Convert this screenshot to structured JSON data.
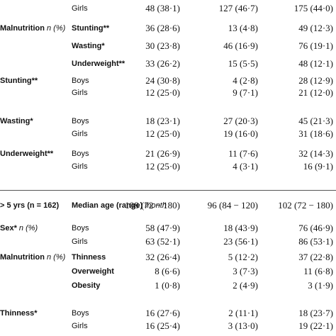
{
  "rows": [
    {
      "c1": "",
      "c1i": "",
      "c2": "Girls",
      "c2i": "",
      "c3": "48 (38·1)",
      "c4": "127 (46·7)",
      "c5": "175 (44·0)"
    },
    {
      "c1": "Malnutrition ",
      "c1i": "n (%)",
      "c2": "Stunting**",
      "c2i": "",
      "c3": "36 (28·6)",
      "c4": "13 (4·8)",
      "c5": "49 (12·3)"
    },
    {
      "c1": "",
      "c1i": "",
      "c2": "Wasting*",
      "c2i": "",
      "c3": "30 (23·8)",
      "c4": "46 (16·9)",
      "c5": "76 (19·1)"
    },
    {
      "c1": "",
      "c1i": "",
      "c2": "Underweight**",
      "c2i": "",
      "c3": "33 (26·2)",
      "c4": "15 (5·5)",
      "c5": "48 (12·1)"
    },
    {
      "c1": "Stunting**",
      "c1i": "",
      "c2": "Boys",
      "c2i": "",
      "c3": "24 (30·8)",
      "c4": "4 (2·8)",
      "c5": "28 (12·9)"
    },
    {
      "c1": "",
      "c1i": "",
      "c2": "Girls",
      "c2i": "",
      "c3": "12 (25·0)",
      "c4": "9 (7·1)",
      "c5": "21 (12·0)"
    },
    {
      "c1": "Wasting*",
      "c1i": "",
      "c2": "Boys",
      "c2i": "",
      "c3": "18 (23·1)",
      "c4": "27 (20·3)",
      "c5": "45 (21·3)"
    },
    {
      "c1": "",
      "c1i": "",
      "c2": "Girls",
      "c2i": "",
      "c3": "12 (25·0)",
      "c4": "19 (16·0)",
      "c5": "31 (18·6)"
    },
    {
      "c1": "Underweight**",
      "c1i": "",
      "c2": "Boys",
      "c2i": "",
      "c3": "21 (26·9)",
      "c4": "11 (7·6)",
      "c5": "32 (14·3)"
    },
    {
      "c1": "",
      "c1i": "",
      "c2": "Girls",
      "c2i": "",
      "c3": "12 (25·0)",
      "c4": "4 (3·1)",
      "c5": "16 (9·1)"
    },
    {
      "c1": "> 5 yrs (n = 162)",
      "c1i": "",
      "c2": "Median age (range) ",
      "c2i": "month",
      "c3": "108 (72 − 180)",
      "c4": "96 (84 − 120)",
      "c5": "102 (72 − 180)"
    },
    {
      "c1": "Sex* ",
      "c1i": "n (%)",
      "c2": "Boys",
      "c2i": "",
      "c3": "58 (47·9)",
      "c4": "18 (43·9)",
      "c5": "76 (46·9)"
    },
    {
      "c1": "",
      "c1i": "",
      "c2": "Girls",
      "c2i": "",
      "c3": "63 (52·1)",
      "c4": "23 (56·1)",
      "c5": "86 (53·1)"
    },
    {
      "c1": "Malnutrition ",
      "c1i": "n (%)",
      "c2": "Thinness",
      "c2i": "",
      "c3": "32 (26·4)",
      "c4": "5 (12·2)",
      "c5": "37 (22·8)"
    },
    {
      "c1": "",
      "c1i": "",
      "c2": "Overweight",
      "c2i": "",
      "c3": "8 (6·6)",
      "c4": "3 (7·3)",
      "c5": "11 (6·8)"
    },
    {
      "c1": "",
      "c1i": "",
      "c2": "Obesity",
      "c2i": "",
      "c3": "1 (0·8)",
      "c4": "2 (4·9)",
      "c5": "3 (1·9)"
    },
    {
      "c1": "Thinness*",
      "c1i": "",
      "c2": "Boys",
      "c2i": "",
      "c3": "16 (27·6)",
      "c4": "2 (11·1)",
      "c5": "18 (23·7)"
    },
    {
      "c1": "",
      "c1i": "",
      "c2": "Girls",
      "c2i": "",
      "c3": "16 (25·4)",
      "c4": "3 (13·0)",
      "c5": "19 (22·1)"
    }
  ]
}
